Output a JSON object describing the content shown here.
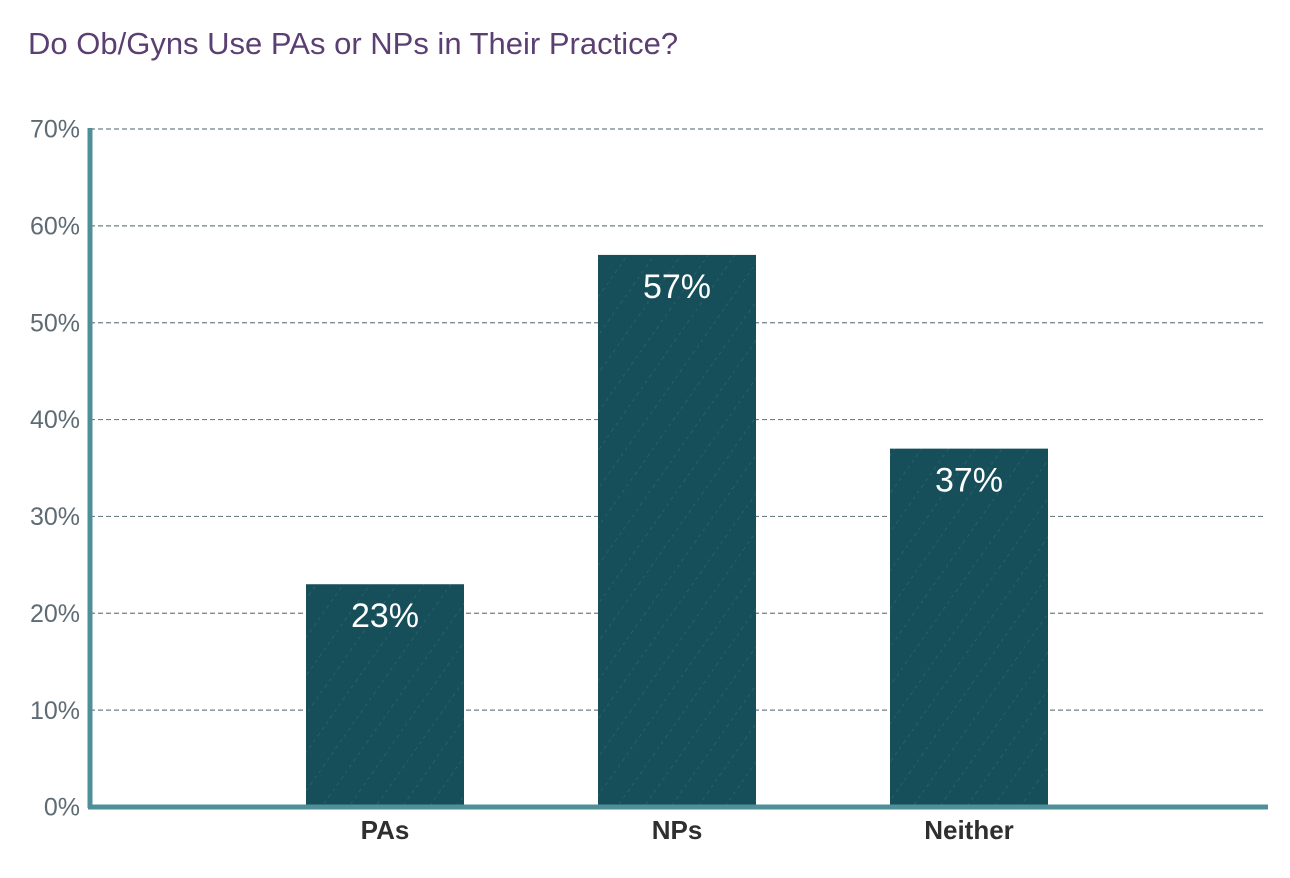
{
  "chart_data": {
    "type": "bar",
    "title": "Do Ob/Gyns Use PAs or NPs in Their Practice?",
    "categories": [
      "PAs",
      "NPs",
      "Neither"
    ],
    "values": [
      23,
      57,
      37
    ],
    "value_labels": [
      "23%",
      "57%",
      "37%"
    ],
    "color": "#164f5a",
    "ylim": [
      0,
      70
    ],
    "yticks": [
      {
        "value": 0,
        "label": "0%"
      },
      {
        "value": 10,
        "label": "10%"
      },
      {
        "value": 20,
        "label": "20%"
      },
      {
        "value": 30,
        "label": "30%"
      },
      {
        "value": 40,
        "label": "40%"
      },
      {
        "value": 50,
        "label": "50%"
      },
      {
        "value": 60,
        "label": "60%"
      },
      {
        "value": 70,
        "label": "70%"
      }
    ],
    "grid": true
  }
}
